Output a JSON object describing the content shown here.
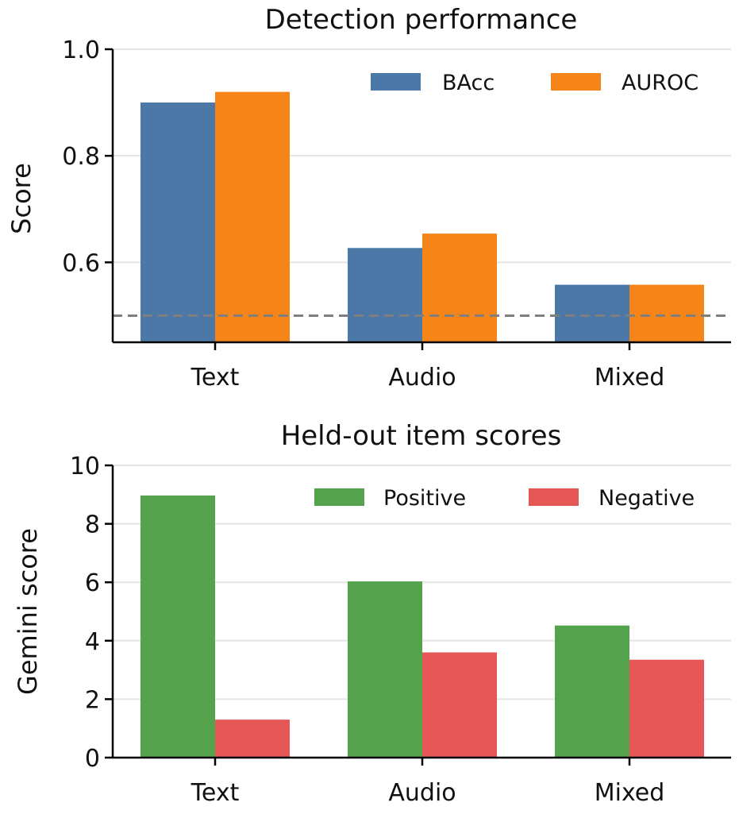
{
  "chart_data": [
    {
      "type": "bar",
      "title": "Detection performance",
      "xlabel": "",
      "ylabel": "Score",
      "categories": [
        "Text",
        "Audio",
        "Mixed"
      ],
      "series": [
        {
          "name": "BAcc",
          "values": [
            0.9,
            0.627,
            0.558
          ],
          "color": "#4c78a8"
        },
        {
          "name": "AUROC",
          "values": [
            0.92,
            0.654,
            0.558
          ],
          "color": "#f58518"
        }
      ],
      "ylim": [
        0.45,
        1.0
      ],
      "yticks": [
        0.6,
        0.8,
        1.0
      ],
      "ytick_labels": [
        "0.6",
        "0.8",
        "1.0"
      ],
      "reference_line": {
        "y": 0.5,
        "style": "dashed",
        "color": "#7f7f7f"
      },
      "grid": "horizontal",
      "legend_position": "top-right"
    },
    {
      "type": "bar",
      "title": "Held-out item scores",
      "xlabel": "",
      "ylabel": "Gemini score",
      "categories": [
        "Text",
        "Audio",
        "Mixed"
      ],
      "series": [
        {
          "name": "Positive",
          "values": [
            8.97,
            6.03,
            4.52
          ],
          "color": "#54a24b"
        },
        {
          "name": "Negative",
          "values": [
            1.3,
            3.6,
            3.35
          ],
          "color": "#e45756"
        }
      ],
      "ylim": [
        0,
        10
      ],
      "yticks": [
        0,
        2,
        4,
        6,
        8,
        10
      ],
      "ytick_labels": [
        "0",
        "2",
        "4",
        "6",
        "8",
        "10"
      ],
      "grid": "horizontal",
      "legend_position": "top-right"
    }
  ]
}
